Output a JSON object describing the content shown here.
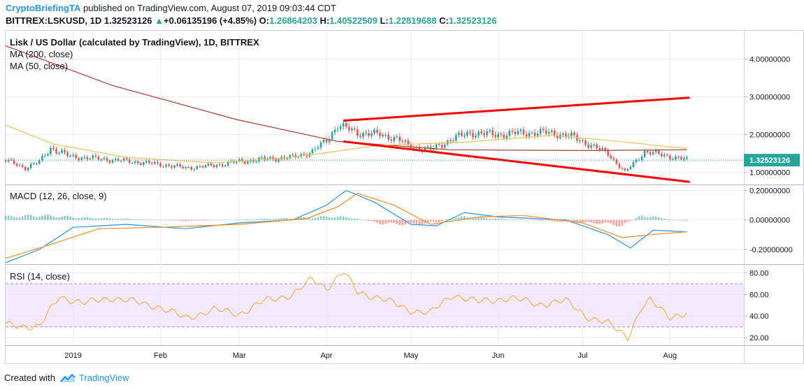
{
  "header": {
    "author": "CryptoBriefingTA",
    "published_text": "published on TradingView.com, August 07, 2019 09:03:44 CDT",
    "symbol": "BITTREX:LSKUSD, 1D",
    "last": "1.32523126",
    "change": "+0.06135196 (+4.85%)",
    "open_label": "O:",
    "open": "1.26864203",
    "high_label": "H:",
    "high": "1.40522509",
    "low_label": "L:",
    "low": "1.22819688",
    "close_label": "C:",
    "close": "1.32523126"
  },
  "panes": {
    "main": {
      "title": "Lisk / US Dollar (calculated by TradingView), 1D, BITTREX",
      "ma200": "MA (200, close)",
      "ma50": "MA (50, close)"
    },
    "macd": {
      "title": "MACD (12, 26, close, 9)"
    },
    "rsi": {
      "title": "RSI (14, close)"
    }
  },
  "footer": {
    "created_with": "Created with",
    "brand": "TradingView"
  },
  "colors": {
    "up": "#26a69a",
    "down": "#ef5350",
    "ma200": "#b03a2e",
    "ma50": "#f0c05a",
    "macd": "#2196f3",
    "signal": "#ff8a1d",
    "rsi": "#f5a623",
    "rsi_band": "#ece0ff",
    "trend": "#ff0000",
    "grid": "#e9ecf2",
    "price_tag": "#26a69a"
  },
  "chart_data": [
    {
      "type": "candlestick",
      "title": "Lisk / US Dollar (calculated by TradingView), 1D, BITTREX",
      "x_labels": [
        "2019",
        "Feb",
        "Mar",
        "Apr",
        "May",
        "Jun",
        "Jul",
        "Aug"
      ],
      "y_ticks": [
        "1.00000000",
        "2.00000000",
        "3.00000000",
        "4.00000000"
      ],
      "y_tick_values": [
        1,
        2,
        3,
        4
      ],
      "ylim": [
        0.68,
        4.75
      ],
      "last_price": 1.32523126,
      "last_price_label": "1.32523126",
      "price_path": [
        [
          "2018-12-08",
          1.32
        ],
        [
          "2018-12-15",
          1.12
        ],
        [
          "2018-12-20",
          1.28
        ],
        [
          "2018-12-24",
          1.65
        ],
        [
          "2018-12-31",
          1.42
        ],
        [
          "2019-01-10",
          1.36
        ],
        [
          "2019-01-20",
          1.3
        ],
        [
          "2019-01-31",
          1.22
        ],
        [
          "2019-02-10",
          1.12
        ],
        [
          "2019-02-20",
          1.18
        ],
        [
          "2019-02-28",
          1.28
        ],
        [
          "2019-03-10",
          1.35
        ],
        [
          "2019-03-20",
          1.4
        ],
        [
          "2019-03-27",
          1.55
        ],
        [
          "2019-04-01",
          1.85
        ],
        [
          "2019-04-05",
          2.25
        ],
        [
          "2019-04-12",
          2.05
        ],
        [
          "2019-04-20",
          2.0
        ],
        [
          "2019-04-26",
          1.9
        ],
        [
          "2019-04-30",
          1.7
        ],
        [
          "2019-05-08",
          1.6
        ],
        [
          "2019-05-16",
          1.9
        ],
        [
          "2019-05-22",
          2.05
        ],
        [
          "2019-05-31",
          2.0
        ],
        [
          "2019-06-10",
          2.05
        ],
        [
          "2019-06-20",
          2.05
        ],
        [
          "2019-06-27",
          1.95
        ],
        [
          "2019-07-03",
          1.75
        ],
        [
          "2019-07-10",
          1.5
        ],
        [
          "2019-07-16",
          1.0
        ],
        [
          "2019-07-23",
          1.55
        ],
        [
          "2019-07-30",
          1.45
        ],
        [
          "2019-08-07",
          1.33
        ]
      ],
      "ma200": [
        [
          "2018-12-08",
          4.35
        ],
        [
          "2019-01-15",
          3.3
        ],
        [
          "2019-02-28",
          2.4
        ],
        [
          "2019-04-05",
          1.82
        ],
        [
          "2019-05-15",
          1.6
        ],
        [
          "2019-07-01",
          1.58
        ],
        [
          "2019-08-07",
          1.6
        ]
      ],
      "ma50": [
        [
          "2018-12-08",
          2.25
        ],
        [
          "2018-12-25",
          1.75
        ],
        [
          "2019-01-20",
          1.4
        ],
        [
          "2019-02-20",
          1.25
        ],
        [
          "2019-03-20",
          1.4
        ],
        [
          "2019-04-20",
          1.72
        ],
        [
          "2019-05-20",
          1.8
        ],
        [
          "2019-06-20",
          1.98
        ],
        [
          "2019-07-10",
          1.85
        ],
        [
          "2019-08-07",
          1.63
        ]
      ],
      "trend_lines": [
        [
          [
            "2019-04-07",
            2.37
          ],
          [
            "2019-08-08",
            2.98
          ]
        ],
        [
          [
            "2019-04-07",
            1.82
          ],
          [
            "2019-08-08",
            0.75
          ]
        ]
      ]
    },
    {
      "type": "line",
      "title": "MACD (12, 26, close, 9)",
      "y_ticks": [
        "-0.20000000",
        "0.00000000",
        "0.20000000"
      ],
      "y_tick_values": [
        -0.2,
        0,
        0.2
      ],
      "ylim": [
        -0.3,
        0.24
      ],
      "series": [
        {
          "name": "MACD",
          "points": [
            [
              "2018-12-08",
              -0.29
            ],
            [
              "2018-12-20",
              -0.2
            ],
            [
              "2019-01-01",
              -0.05
            ],
            [
              "2019-01-20",
              -0.03
            ],
            [
              "2019-02-10",
              -0.06
            ],
            [
              "2019-03-01",
              -0.02
            ],
            [
              "2019-03-20",
              0.0
            ],
            [
              "2019-04-01",
              0.1
            ],
            [
              "2019-04-08",
              0.2
            ],
            [
              "2019-04-18",
              0.12
            ],
            [
              "2019-05-01",
              -0.03
            ],
            [
              "2019-05-10",
              -0.04
            ],
            [
              "2019-05-20",
              0.05
            ],
            [
              "2019-06-01",
              0.02
            ],
            [
              "2019-06-25",
              0.0
            ],
            [
              "2019-07-10",
              -0.1
            ],
            [
              "2019-07-18",
              -0.19
            ],
            [
              "2019-07-26",
              -0.07
            ],
            [
              "2019-08-07",
              -0.08
            ]
          ]
        },
        {
          "name": "Signal",
          "points": [
            [
              "2018-12-08",
              -0.26
            ],
            [
              "2018-12-25",
              -0.16
            ],
            [
              "2019-01-10",
              -0.06
            ],
            [
              "2019-02-01",
              -0.05
            ],
            [
              "2019-03-01",
              -0.03
            ],
            [
              "2019-03-25",
              0.01
            ],
            [
              "2019-04-05",
              0.09
            ],
            [
              "2019-04-12",
              0.18
            ],
            [
              "2019-04-25",
              0.1
            ],
            [
              "2019-05-08",
              -0.03
            ],
            [
              "2019-05-25",
              0.02
            ],
            [
              "2019-06-10",
              0.03
            ],
            [
              "2019-07-01",
              -0.02
            ],
            [
              "2019-07-15",
              -0.12
            ],
            [
              "2019-07-25",
              -0.1
            ],
            [
              "2019-08-07",
              -0.08
            ]
          ]
        }
      ],
      "histogram": [
        [
          "2018-12-10",
          0.03
        ],
        [
          "2018-12-20",
          0.04
        ],
        [
          "2019-01-05",
          0.02
        ],
        [
          "2019-01-20",
          0.01
        ],
        [
          "2019-02-10",
          -0.01
        ],
        [
          "2019-03-10",
          0.01
        ],
        [
          "2019-03-25",
          0.02
        ],
        [
          "2019-04-03",
          0.03
        ],
        [
          "2019-04-10",
          0.02
        ],
        [
          "2019-04-20",
          -0.03
        ],
        [
          "2019-05-01",
          -0.04
        ],
        [
          "2019-05-10",
          -0.02
        ],
        [
          "2019-05-20",
          0.03
        ],
        [
          "2019-06-01",
          0.01
        ],
        [
          "2019-06-20",
          -0.01
        ],
        [
          "2019-07-08",
          -0.03
        ],
        [
          "2019-07-15",
          -0.05
        ],
        [
          "2019-07-22",
          0.04
        ],
        [
          "2019-07-28",
          0.02
        ],
        [
          "2019-08-06",
          -0.01
        ]
      ]
    },
    {
      "type": "line",
      "title": "RSI (14, close)",
      "y_ticks": [
        "20.00",
        "40.00",
        "60.00",
        "80.00"
      ],
      "y_tick_values": [
        20,
        40,
        60,
        80
      ],
      "ylim": [
        13,
        88
      ],
      "band": [
        30,
        70
      ],
      "series": [
        {
          "name": "RSI",
          "points": [
            [
              "2018-12-08",
              32
            ],
            [
              "2018-12-20",
              30
            ],
            [
              "2018-12-27",
              58
            ],
            [
              "2019-01-05",
              52
            ],
            [
              "2019-01-15",
              57
            ],
            [
              "2019-01-31",
              49
            ],
            [
              "2019-02-10",
              38
            ],
            [
              "2019-02-20",
              46
            ],
            [
              "2019-03-01",
              42
            ],
            [
              "2019-03-10",
              54
            ],
            [
              "2019-03-20",
              60
            ],
            [
              "2019-03-27",
              74
            ],
            [
              "2019-04-01",
              66
            ],
            [
              "2019-04-07",
              81
            ],
            [
              "2019-04-12",
              62
            ],
            [
              "2019-04-20",
              57
            ],
            [
              "2019-04-30",
              46
            ],
            [
              "2019-05-08",
              43
            ],
            [
              "2019-05-16",
              60
            ],
            [
              "2019-05-25",
              53
            ],
            [
              "2019-06-05",
              57
            ],
            [
              "2019-06-15",
              51
            ],
            [
              "2019-06-25",
              54
            ],
            [
              "2019-07-03",
              39
            ],
            [
              "2019-07-10",
              33
            ],
            [
              "2019-07-17",
              21
            ],
            [
              "2019-07-22",
              48
            ],
            [
              "2019-07-25",
              54
            ],
            [
              "2019-08-01",
              40
            ],
            [
              "2019-08-07",
              42
            ]
          ]
        }
      ]
    }
  ]
}
